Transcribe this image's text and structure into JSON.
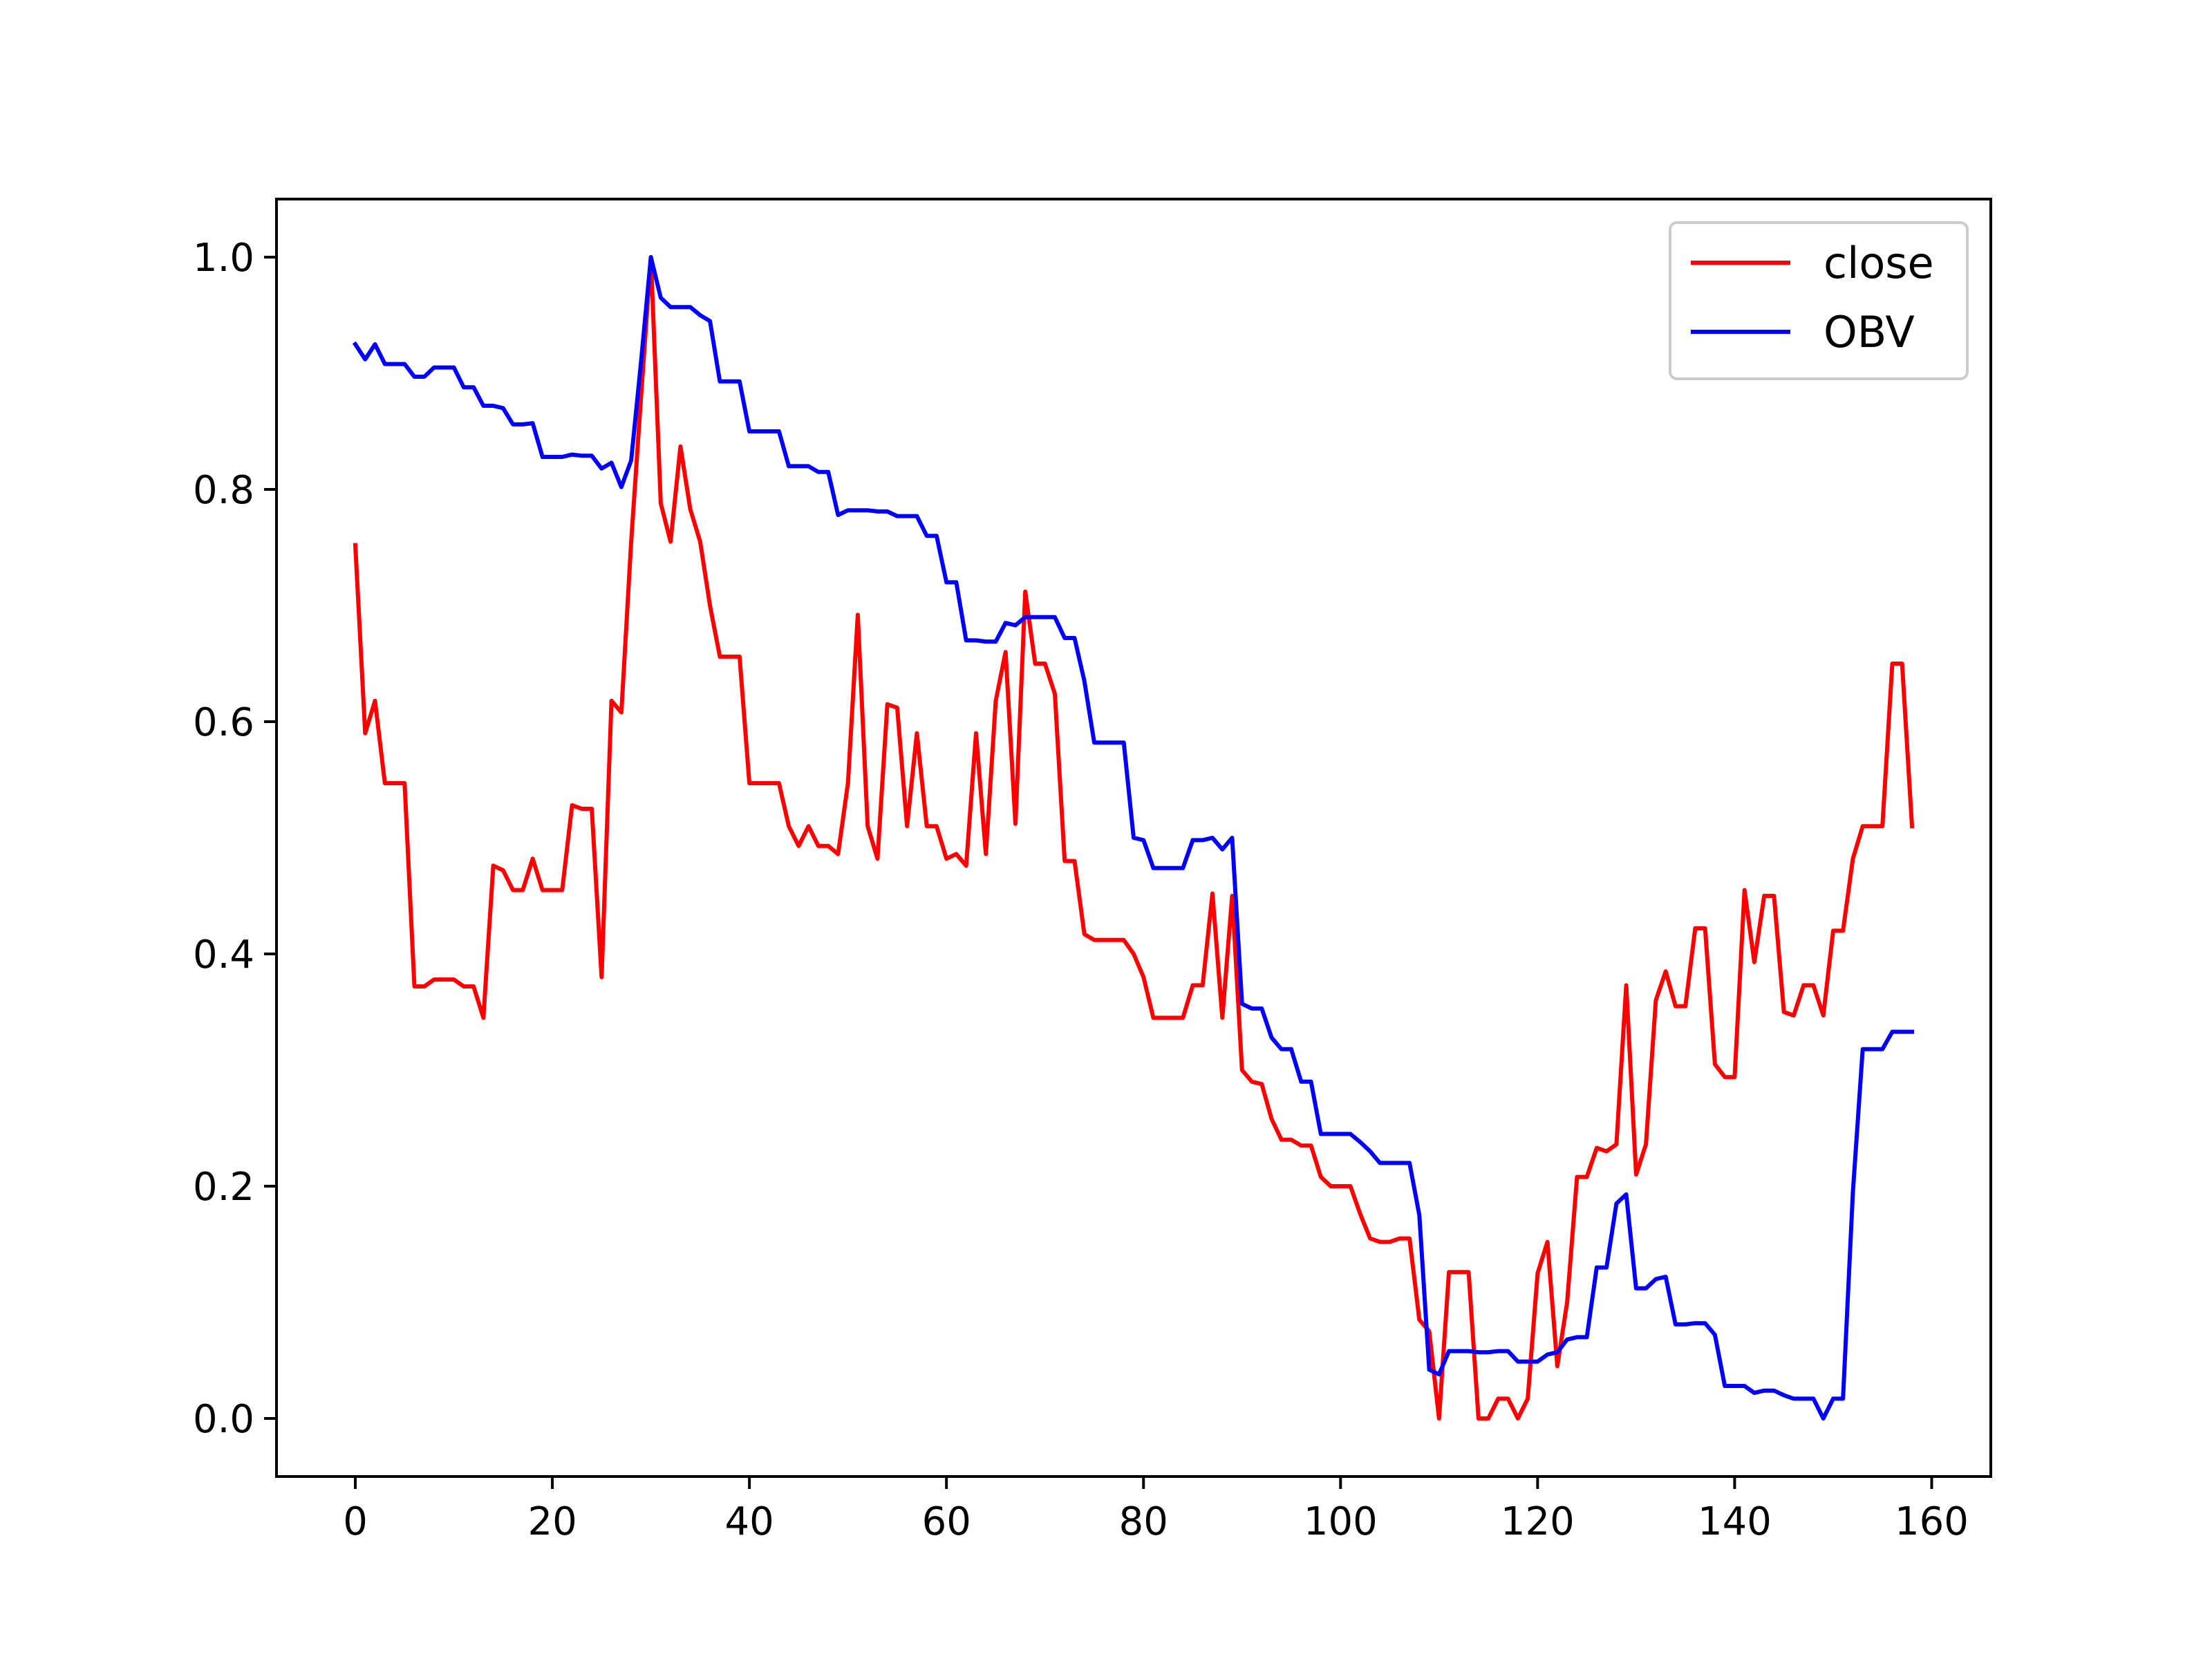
{
  "chart_data": {
    "type": "line",
    "title": "",
    "xlabel": "",
    "ylabel": "",
    "xlim": [
      -8,
      166
    ],
    "ylim": [
      -0.05,
      1.05
    ],
    "xticks": [
      0,
      20,
      40,
      60,
      80,
      100,
      120,
      140,
      160
    ],
    "yticks": [
      0.0,
      0.2,
      0.4,
      0.6,
      0.8,
      1.0
    ],
    "xtick_labels": [
      "0",
      "20",
      "40",
      "60",
      "80",
      "100",
      "120",
      "140",
      "160"
    ],
    "ytick_labels": [
      "0.0",
      "0.2",
      "0.4",
      "0.6",
      "0.8",
      "1.0"
    ],
    "grid": false,
    "legend_position": "top-right",
    "series": [
      {
        "name": "close",
        "color": "#ff0000",
        "points": [
          [
            0,
            0.752
          ],
          [
            1,
            0.59
          ],
          [
            2,
            0.618
          ],
          [
            3,
            0.547
          ],
          [
            4,
            0.547
          ],
          [
            5,
            0.547
          ],
          [
            6,
            0.372
          ],
          [
            7,
            0.372
          ],
          [
            8,
            0.378
          ],
          [
            9,
            0.378
          ],
          [
            10,
            0.378
          ],
          [
            11,
            0.372
          ],
          [
            12,
            0.372
          ],
          [
            13,
            0.345
          ],
          [
            14,
            0.476
          ],
          [
            15,
            0.472
          ],
          [
            16,
            0.455
          ],
          [
            17,
            0.455
          ],
          [
            18,
            0.482
          ],
          [
            19,
            0.455
          ],
          [
            20,
            0.455
          ],
          [
            21,
            0.455
          ],
          [
            22,
            0.528
          ],
          [
            23,
            0.525
          ],
          [
            24,
            0.525
          ],
          [
            25,
            0.38
          ],
          [
            26,
            0.618
          ],
          [
            27,
            0.608
          ],
          [
            28,
            0.755
          ],
          [
            29,
            0.88
          ],
          [
            30,
            1.0
          ],
          [
            31,
            0.788
          ],
          [
            32,
            0.755
          ],
          [
            33,
            0.837
          ],
          [
            34,
            0.783
          ],
          [
            35,
            0.755
          ],
          [
            36,
            0.7
          ],
          [
            37,
            0.656
          ],
          [
            38,
            0.656
          ],
          [
            39,
            0.656
          ],
          [
            40,
            0.547
          ],
          [
            41,
            0.547
          ],
          [
            42,
            0.547
          ],
          [
            43,
            0.547
          ],
          [
            44,
            0.51
          ],
          [
            45,
            0.493
          ],
          [
            46,
            0.51
          ],
          [
            47,
            0.493
          ],
          [
            48,
            0.493
          ],
          [
            49,
            0.486
          ],
          [
            50,
            0.547
          ],
          [
            51,
            0.692
          ],
          [
            52,
            0.51
          ],
          [
            53,
            0.482
          ],
          [
            54,
            0.615
          ],
          [
            55,
            0.612
          ],
          [
            56,
            0.51
          ],
          [
            57,
            0.59
          ],
          [
            58,
            0.51
          ],
          [
            59,
            0.51
          ],
          [
            60,
            0.482
          ],
          [
            61,
            0.486
          ],
          [
            62,
            0.476
          ],
          [
            63,
            0.59
          ],
          [
            64,
            0.486
          ],
          [
            65,
            0.618
          ],
          [
            66,
            0.66
          ],
          [
            67,
            0.512
          ],
          [
            68,
            0.712
          ],
          [
            69,
            0.65
          ],
          [
            70,
            0.65
          ],
          [
            71,
            0.624
          ],
          [
            72,
            0.48
          ],
          [
            73,
            0.48
          ],
          [
            74,
            0.417
          ],
          [
            75,
            0.412
          ],
          [
            76,
            0.412
          ],
          [
            77,
            0.412
          ],
          [
            78,
            0.412
          ],
          [
            79,
            0.4
          ],
          [
            80,
            0.38
          ],
          [
            81,
            0.345
          ],
          [
            82,
            0.345
          ],
          [
            83,
            0.345
          ],
          [
            84,
            0.345
          ],
          [
            85,
            0.373
          ],
          [
            86,
            0.373
          ],
          [
            87,
            0.452
          ],
          [
            88,
            0.345
          ],
          [
            89,
            0.45
          ],
          [
            90,
            0.3
          ],
          [
            91,
            0.29
          ],
          [
            92,
            0.288
          ],
          [
            93,
            0.258
          ],
          [
            94,
            0.24
          ],
          [
            95,
            0.24
          ],
          [
            96,
            0.235
          ],
          [
            97,
            0.235
          ],
          [
            98,
            0.208
          ],
          [
            99,
            0.2
          ],
          [
            100,
            0.2
          ],
          [
            101,
            0.2
          ],
          [
            102,
            0.176
          ],
          [
            103,
            0.155
          ],
          [
            104,
            0.152
          ],
          [
            105,
            0.152
          ],
          [
            106,
            0.155
          ],
          [
            107,
            0.155
          ],
          [
            108,
            0.085
          ],
          [
            109,
            0.075
          ],
          [
            110,
            0.0
          ],
          [
            111,
            0.126
          ],
          [
            112,
            0.126
          ],
          [
            113,
            0.126
          ],
          [
            114,
            0.0
          ],
          [
            115,
            0.0
          ],
          [
            116,
            0.017
          ],
          [
            117,
            0.017
          ],
          [
            118,
            0.0
          ],
          [
            119,
            0.017
          ],
          [
            120,
            0.125
          ],
          [
            121,
            0.152
          ],
          [
            122,
            0.045
          ],
          [
            123,
            0.1
          ],
          [
            124,
            0.208
          ],
          [
            125,
            0.208
          ],
          [
            126,
            0.233
          ],
          [
            127,
            0.23
          ],
          [
            128,
            0.236
          ],
          [
            129,
            0.373
          ],
          [
            130,
            0.21
          ],
          [
            131,
            0.236
          ],
          [
            132,
            0.36
          ],
          [
            133,
            0.385
          ],
          [
            134,
            0.355
          ],
          [
            135,
            0.355
          ],
          [
            136,
            0.422
          ],
          [
            137,
            0.422
          ],
          [
            138,
            0.305
          ],
          [
            139,
            0.294
          ],
          [
            140,
            0.294
          ],
          [
            141,
            0.455
          ],
          [
            142,
            0.393
          ],
          [
            143,
            0.45
          ],
          [
            144,
            0.45
          ],
          [
            145,
            0.35
          ],
          [
            146,
            0.347
          ],
          [
            147,
            0.373
          ],
          [
            148,
            0.373
          ],
          [
            149,
            0.347
          ],
          [
            150,
            0.42
          ],
          [
            151,
            0.42
          ],
          [
            152,
            0.482
          ],
          [
            153,
            0.51
          ],
          [
            154,
            0.51
          ],
          [
            155,
            0.51
          ],
          [
            156,
            0.65
          ],
          [
            157,
            0.65
          ],
          [
            158,
            0.51
          ]
        ]
      },
      {
        "name": "OBV",
        "color": "#0000ff",
        "points": [
          [
            0,
            0.925
          ],
          [
            1,
            0.912
          ],
          [
            2,
            0.925
          ],
          [
            3,
            0.908
          ],
          [
            4,
            0.908
          ],
          [
            5,
            0.908
          ],
          [
            6,
            0.897
          ],
          [
            7,
            0.897
          ],
          [
            8,
            0.905
          ],
          [
            9,
            0.905
          ],
          [
            10,
            0.905
          ],
          [
            11,
            0.888
          ],
          [
            12,
            0.888
          ],
          [
            13,
            0.872
          ],
          [
            14,
            0.872
          ],
          [
            15,
            0.87
          ],
          [
            16,
            0.856
          ],
          [
            17,
            0.856
          ],
          [
            18,
            0.857
          ],
          [
            19,
            0.828
          ],
          [
            20,
            0.828
          ],
          [
            21,
            0.828
          ],
          [
            22,
            0.83
          ],
          [
            23,
            0.829
          ],
          [
            24,
            0.829
          ],
          [
            25,
            0.818
          ],
          [
            26,
            0.823
          ],
          [
            27,
            0.802
          ],
          [
            28,
            0.825
          ],
          [
            29,
            0.91
          ],
          [
            30,
            1.0
          ],
          [
            31,
            0.965
          ],
          [
            32,
            0.957
          ],
          [
            33,
            0.957
          ],
          [
            34,
            0.957
          ],
          [
            35,
            0.95
          ],
          [
            36,
            0.945
          ],
          [
            37,
            0.893
          ],
          [
            38,
            0.893
          ],
          [
            39,
            0.893
          ],
          [
            40,
            0.85
          ],
          [
            41,
            0.85
          ],
          [
            42,
            0.85
          ],
          [
            43,
            0.85
          ],
          [
            44,
            0.82
          ],
          [
            45,
            0.82
          ],
          [
            46,
            0.82
          ],
          [
            47,
            0.815
          ],
          [
            48,
            0.815
          ],
          [
            49,
            0.778
          ],
          [
            50,
            0.782
          ],
          [
            51,
            0.782
          ],
          [
            52,
            0.782
          ],
          [
            53,
            0.781
          ],
          [
            54,
            0.781
          ],
          [
            55,
            0.777
          ],
          [
            56,
            0.777
          ],
          [
            57,
            0.777
          ],
          [
            58,
            0.76
          ],
          [
            59,
            0.76
          ],
          [
            60,
            0.72
          ],
          [
            61,
            0.72
          ],
          [
            62,
            0.67
          ],
          [
            63,
            0.67
          ],
          [
            64,
            0.669
          ],
          [
            65,
            0.669
          ],
          [
            66,
            0.685
          ],
          [
            67,
            0.683
          ],
          [
            68,
            0.69
          ],
          [
            69,
            0.69
          ],
          [
            70,
            0.69
          ],
          [
            71,
            0.69
          ],
          [
            72,
            0.672
          ],
          [
            73,
            0.672
          ],
          [
            74,
            0.635
          ],
          [
            75,
            0.582
          ],
          [
            76,
            0.582
          ],
          [
            77,
            0.582
          ],
          [
            78,
            0.582
          ],
          [
            79,
            0.5
          ],
          [
            80,
            0.498
          ],
          [
            81,
            0.474
          ],
          [
            82,
            0.474
          ],
          [
            83,
            0.474
          ],
          [
            84,
            0.474
          ],
          [
            85,
            0.498
          ],
          [
            86,
            0.498
          ],
          [
            87,
            0.5
          ],
          [
            88,
            0.49
          ],
          [
            89,
            0.5
          ],
          [
            90,
            0.357
          ],
          [
            91,
            0.353
          ],
          [
            92,
            0.353
          ],
          [
            93,
            0.328
          ],
          [
            94,
            0.318
          ],
          [
            95,
            0.318
          ],
          [
            96,
            0.29
          ],
          [
            97,
            0.29
          ],
          [
            98,
            0.245
          ],
          [
            99,
            0.245
          ],
          [
            100,
            0.245
          ],
          [
            101,
            0.245
          ],
          [
            102,
            0.238
          ],
          [
            103,
            0.23
          ],
          [
            104,
            0.22
          ],
          [
            105,
            0.22
          ],
          [
            106,
            0.22
          ],
          [
            107,
            0.22
          ],
          [
            108,
            0.175
          ],
          [
            109,
            0.042
          ],
          [
            110,
            0.038
          ],
          [
            111,
            0.058
          ],
          [
            112,
            0.058
          ],
          [
            113,
            0.058
          ],
          [
            114,
            0.057
          ],
          [
            115,
            0.057
          ],
          [
            116,
            0.058
          ],
          [
            117,
            0.058
          ],
          [
            118,
            0.049
          ],
          [
            119,
            0.049
          ],
          [
            120,
            0.049
          ],
          [
            121,
            0.055
          ],
          [
            122,
            0.057
          ],
          [
            123,
            0.068
          ],
          [
            124,
            0.07
          ],
          [
            125,
            0.07
          ],
          [
            126,
            0.13
          ],
          [
            127,
            0.13
          ],
          [
            128,
            0.185
          ],
          [
            129,
            0.193
          ],
          [
            130,
            0.112
          ],
          [
            131,
            0.112
          ],
          [
            132,
            0.12
          ],
          [
            133,
            0.122
          ],
          [
            134,
            0.081
          ],
          [
            135,
            0.081
          ],
          [
            136,
            0.082
          ],
          [
            137,
            0.082
          ],
          [
            138,
            0.072
          ],
          [
            139,
            0.028
          ],
          [
            140,
            0.028
          ],
          [
            141,
            0.028
          ],
          [
            142,
            0.022
          ],
          [
            143,
            0.024
          ],
          [
            144,
            0.024
          ],
          [
            145,
            0.02
          ],
          [
            146,
            0.017
          ],
          [
            147,
            0.017
          ],
          [
            148,
            0.017
          ],
          [
            149,
            0.0
          ],
          [
            150,
            0.017
          ],
          [
            151,
            0.017
          ],
          [
            152,
            0.195
          ],
          [
            153,
            0.318
          ],
          [
            154,
            0.318
          ],
          [
            155,
            0.318
          ],
          [
            156,
            0.333
          ],
          [
            157,
            0.333
          ],
          [
            158,
            0.333
          ]
        ]
      }
    ]
  }
}
